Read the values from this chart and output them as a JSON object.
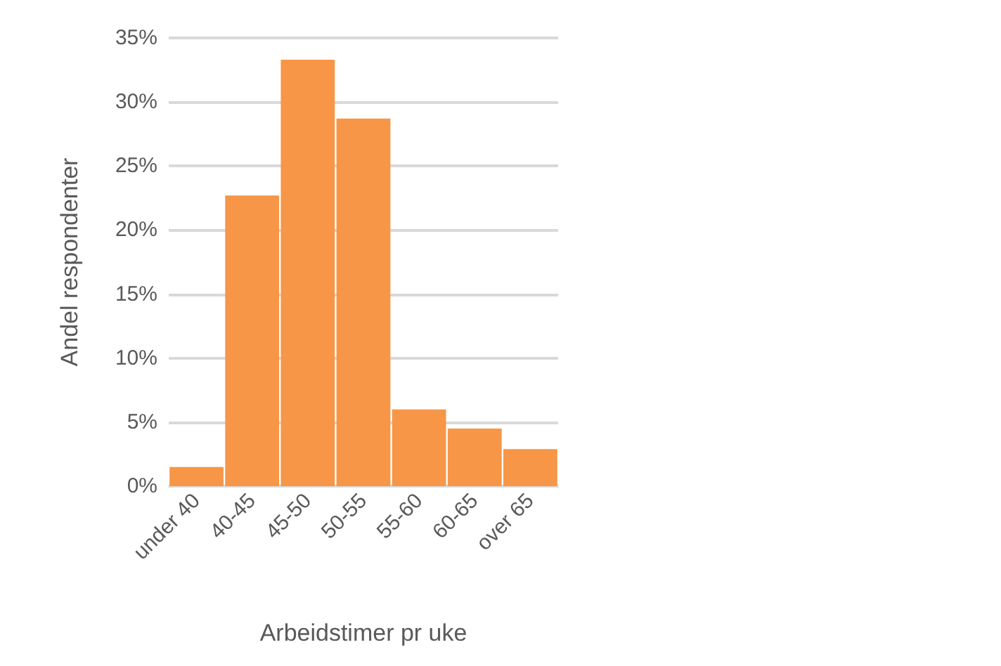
{
  "chart_data": {
    "type": "bar",
    "xlabel": "Arbeidstimer pr uke",
    "ylabel": "Andel respondenter",
    "categories": [
      "under 40",
      "40-45",
      "45-50",
      "50-55",
      "55-60",
      "60-65",
      "over 65"
    ],
    "values": [
      1.5,
      22.7,
      33.3,
      28.7,
      6.0,
      4.5,
      2.9
    ],
    "color": "#f79646",
    "ylim": [
      0,
      35
    ],
    "yticks": [
      {
        "value": 0,
        "label": "0%"
      },
      {
        "value": 5,
        "label": "5%"
      },
      {
        "value": 10,
        "label": "10%"
      },
      {
        "value": 15,
        "label": "15%"
      },
      {
        "value": 20,
        "label": "20%"
      },
      {
        "value": 25,
        "label": "25%"
      },
      {
        "value": 30,
        "label": "30%"
      },
      {
        "value": 35,
        "label": "35%"
      }
    ],
    "grid": "y"
  }
}
